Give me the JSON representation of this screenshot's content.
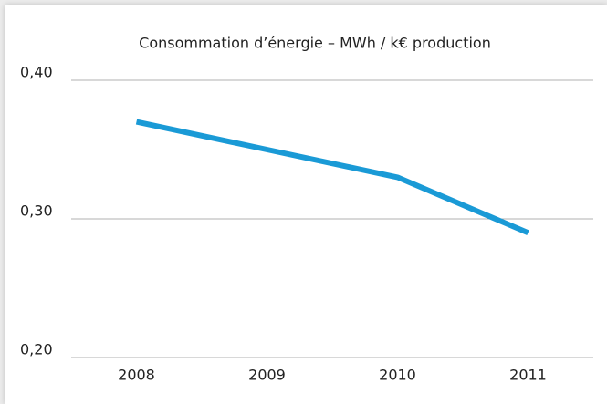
{
  "chart_data": {
    "type": "line",
    "title": "Consommation d’énergie – MWh / k€ production",
    "categories": [
      "2008",
      "2009",
      "2010",
      "2011"
    ],
    "series": [
      {
        "name": null,
        "color": "#1a9ad6",
        "values": [
          0.37,
          0.35,
          0.33,
          0.29
        ]
      }
    ],
    "ylim": [
      0.2,
      0.4
    ],
    "yticks": [
      {
        "value": 0.2,
        "label": "0,20"
      },
      {
        "value": 0.3,
        "label": "0,30"
      },
      {
        "value": 0.4,
        "label": "0,40"
      }
    ],
    "grid": true
  }
}
